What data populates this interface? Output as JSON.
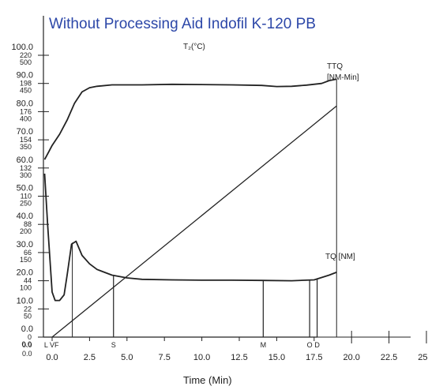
{
  "chart_data": {
    "type": "line",
    "title": "Without Processing Aid Indofil K-120 PB",
    "xlabel": "Time (Min)",
    "x_ticks": [
      "0.0",
      "2.5",
      "5.0",
      "7.5",
      "10.0",
      "12.5",
      "15.0",
      "17.5",
      "20.0",
      "22.5",
      "25.0"
    ],
    "xlim": [
      0,
      25
    ],
    "y_scales": [
      {
        "name": "TQ / TTQ",
        "ticks": [
          "0.0",
          "10.0",
          "20.0",
          "30.0",
          "40.0",
          "50.0",
          "60.0",
          "70.0",
          "80.0",
          "90.0",
          "100.0"
        ],
        "range": [
          0,
          100
        ]
      },
      {
        "name": "secondary",
        "ticks": [
          "0",
          "22",
          "44",
          "66",
          "88",
          "110",
          "132",
          "154",
          "176",
          "198",
          "220"
        ],
        "range": [
          0,
          220
        ]
      },
      {
        "name": "tertiary",
        "ticks": [
          "0.0",
          "50",
          "100",
          "150",
          "200",
          "250",
          "300",
          "350",
          "400",
          "450",
          "500"
        ],
        "range": [
          0,
          500
        ]
      }
    ],
    "series": [
      {
        "name": "TTQ [NM-Min]",
        "x": [
          0,
          19
        ],
        "y": [
          0,
          82
        ]
      },
      {
        "name": "TQ [NM]",
        "x": [
          -0.5,
          -0.3,
          0,
          0.2,
          0.5,
          0.8,
          1.0,
          1.3,
          1.6,
          2.0,
          2.5,
          3.0,
          4.0,
          5.0,
          6.0,
          8.0,
          10.0,
          12.0,
          14.0,
          16.0,
          17.5,
          18.5,
          19.0
        ],
        "y": [
          58,
          40,
          16,
          13,
          13,
          15,
          22,
          33,
          34,
          29,
          26,
          24,
          22,
          21,
          20.5,
          20.3,
          20.2,
          20.2,
          20.1,
          20.0,
          20.3,
          22,
          23
        ]
      },
      {
        "name": "T2 (°C)",
        "x": [
          -0.5,
          -0.2,
          0,
          0.5,
          1.0,
          1.5,
          2.0,
          2.5,
          3.0,
          4.0,
          6.0,
          8.0,
          10.0,
          12.0,
          14.0,
          15.0,
          16.0,
          17.0,
          18.0,
          18.5,
          19.0
        ],
        "y": [
          63,
          66,
          68,
          72,
          77,
          83,
          87,
          88.5,
          89,
          89.5,
          89.5,
          89.7,
          89.6,
          89.5,
          89.3,
          88.9,
          89.0,
          89.4,
          90.0,
          91.0,
          91.5
        ]
      }
    ],
    "markers": [
      {
        "label": "L",
        "x": -0.4
      },
      {
        "label": "V",
        "x": 0
      },
      {
        "label": "F",
        "x": 0.3
      },
      {
        "label": "S",
        "x": 4.1
      },
      {
        "label": "M",
        "x": 14.1
      },
      {
        "label": "O",
        "x": 17.2
      },
      {
        "label": "D",
        "x": 17.7
      }
    ],
    "labels": {
      "t2": "T₂(°C)",
      "ttq": "TTQ",
      "ttq_unit": "[NM-Min]",
      "tq": "TQ [NM]"
    }
  }
}
